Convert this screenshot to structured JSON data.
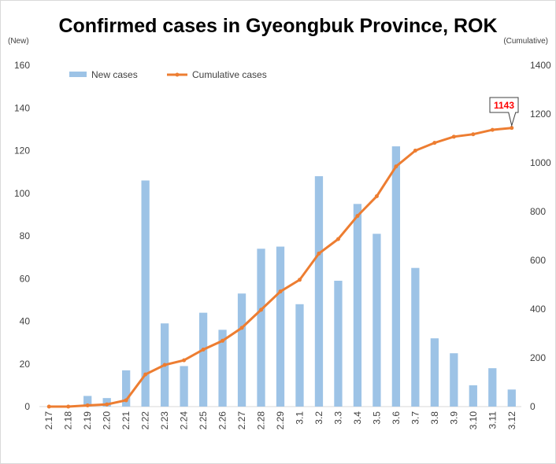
{
  "chart_data": {
    "type": "bar+line",
    "title": "Confirmed cases in Gyeongbuk Province, ROK",
    "left_unit": "(New)",
    "right_unit": "(Cumulative)",
    "categories": [
      "2.17",
      "2.18",
      "2.19",
      "2.20",
      "2.21",
      "2.22",
      "2.23",
      "2.24",
      "2.25",
      "2.26",
      "2.27",
      "2.28",
      "2.29",
      "3.1",
      "3.2",
      "3.3",
      "3.4",
      "3.5",
      "3.6",
      "3.7",
      "3.8",
      "3.9",
      "3.10",
      "3.11",
      "3.12"
    ],
    "series": [
      {
        "name": "New cases",
        "type": "bar",
        "axis": "left",
        "color": "#9dc3e6",
        "values": [
          0,
          0,
          5,
          4,
          17,
          106,
          39,
          19,
          44,
          36,
          53,
          74,
          75,
          48,
          108,
          59,
          95,
          81,
          122,
          65,
          32,
          25,
          10,
          18,
          8
        ]
      },
      {
        "name": "Cumulative cases",
        "type": "line",
        "axis": "right",
        "color": "#ed7d31",
        "values": [
          0,
          0,
          5,
          9,
          26,
          132,
          171,
          190,
          234,
          270,
          323,
          397,
          472,
          520,
          628,
          687,
          782,
          863,
          985,
          1050,
          1082,
          1107,
          1117,
          1135,
          1143
        ]
      }
    ],
    "left_axis": {
      "min": 0,
      "max": 160,
      "ticks": [
        "0",
        "20",
        "40",
        "60",
        "80",
        "100",
        "120",
        "140",
        "160"
      ]
    },
    "right_axis": {
      "min": 0,
      "max": 1400,
      "ticks": [
        "0",
        "200",
        "400",
        "600",
        "800",
        "1000",
        "1200",
        "1400"
      ]
    },
    "annotation": {
      "text": "1143"
    },
    "legend_position": "top-left",
    "grid": false
  }
}
